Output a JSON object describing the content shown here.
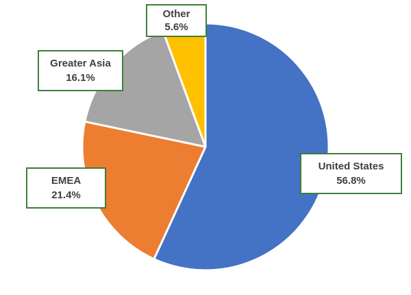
{
  "chart_data": {
    "type": "pie",
    "title": "",
    "start_angle_deg": 0,
    "direction": "clockwise",
    "legend": "none",
    "slices": [
      {
        "label": "United States",
        "value": 56.8,
        "value_label": "56.8%",
        "color": "#4472c4"
      },
      {
        "label": "EMEA",
        "value": 21.4,
        "value_label": "21.4%",
        "color": "#ed7d31"
      },
      {
        "label": "Greater Asia",
        "value": 16.1,
        "value_label": "16.1%",
        "color": "#a5a5a5"
      },
      {
        "label": "Other",
        "value": 5.6,
        "value_label": "5.6%",
        "color": "#ffc000"
      }
    ]
  }
}
